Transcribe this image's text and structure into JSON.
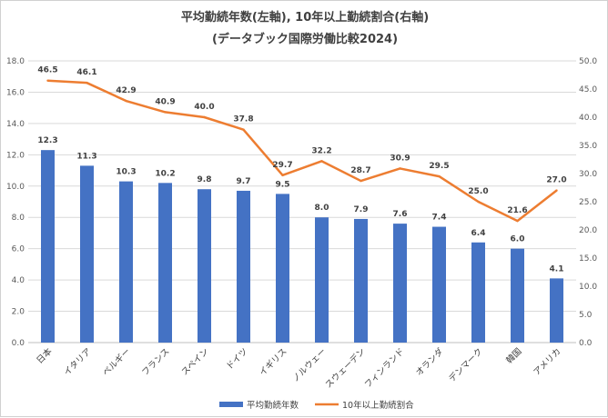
{
  "chart_data": {
    "type": "bar",
    "title_lines": [
      "平均勤続年数(左軸), 10年以上勤続割合(右軸)",
      "(データブック国際労働比較2024)"
    ],
    "categories": [
      "日本",
      "イタリア",
      "ベルギー",
      "フランス",
      "スペイン",
      "ドイツ",
      "イギリス",
      "ノルウェー",
      "スウェーデン",
      "フィンランド",
      "オランダ",
      "デンマーク",
      "韓国",
      "アメリカ"
    ],
    "series": [
      {
        "name": "平均勤続年数",
        "type": "bar",
        "axis": "left",
        "color": "#4472C4",
        "values": [
          12.3,
          11.3,
          10.3,
          10.2,
          9.8,
          9.7,
          9.5,
          8.0,
          7.9,
          7.6,
          7.4,
          6.4,
          6.0,
          4.1
        ]
      },
      {
        "name": "10年以上勤続割合",
        "type": "line",
        "axis": "right",
        "color": "#ED7D31",
        "values": [
          46.5,
          46.1,
          42.9,
          40.9,
          40.0,
          37.8,
          29.7,
          32.2,
          28.7,
          30.9,
          29.5,
          25.0,
          21.6,
          27.0
        ]
      }
    ],
    "y_left": {
      "min": 0,
      "max": 18,
      "step": 2,
      "ticks": [
        "0.0",
        "2.0",
        "4.0",
        "6.0",
        "8.0",
        "10.0",
        "12.0",
        "14.0",
        "16.0",
        "18.0"
      ]
    },
    "y_right": {
      "min": 0,
      "max": 50,
      "step": 5,
      "ticks": [
        "0.0",
        "5.0",
        "10.0",
        "15.0",
        "20.0",
        "25.0",
        "30.0",
        "35.0",
        "40.0",
        "45.0",
        "50.0"
      ]
    },
    "bar_labels": [
      "12.3",
      "11.3",
      "10.3",
      "10.2",
      "9.8",
      "9.7",
      "9.5",
      "8.0",
      "7.9",
      "7.6",
      "7.4",
      "6.4",
      "6.0",
      "4.1"
    ],
    "line_labels": [
      "46.5",
      "46.1",
      "42.9",
      "40.9",
      "40.0",
      "37.8",
      "29.7",
      "32.2",
      "28.7",
      "30.9",
      "29.5",
      "25.0",
      "21.6",
      "27.0"
    ],
    "grid": true,
    "legend_position": "bottom"
  }
}
